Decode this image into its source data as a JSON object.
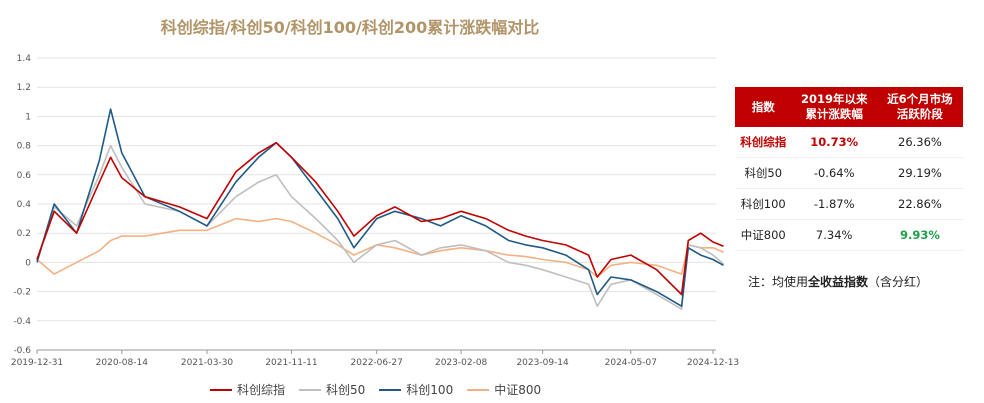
{
  "chart_data": {
    "type": "line",
    "title": "科创综指/科创50/科创100/科创200累计涨跌幅对比",
    "ylim": [
      -0.5,
      1.4
    ],
    "yticks": [
      "1.4",
      "1.2",
      "1",
      "0.8",
      "0.6",
      "0.4",
      "0.2",
      "0",
      "-0.2",
      "-0.4",
      "-0.6"
    ],
    "ytick_values": [
      1.4,
      1.2,
      1.0,
      0.8,
      0.6,
      0.4,
      0.2,
      0,
      -0.2,
      -0.4,
      -0.6
    ],
    "x_tick_labels": [
      "2019-12-31",
      "2020-08-14",
      "2021-03-30",
      "2021-11-11",
      "2022-06-27",
      "2023-02-08",
      "2023-09-14",
      "2024-05-07",
      "2024-12-13"
    ],
    "x_dates": [
      "2019-12-31",
      "2020-02-15",
      "2020-04-15",
      "2020-06-15",
      "2020-07-15",
      "2020-08-14",
      "2020-10-15",
      "2021-01-15",
      "2021-03-30",
      "2021-06-15",
      "2021-08-15",
      "2021-10-01",
      "2021-11-11",
      "2022-01-15",
      "2022-03-15",
      "2022-04-27",
      "2022-06-27",
      "2022-08-15",
      "2022-10-25",
      "2022-12-15",
      "2023-02-08",
      "2023-04-15",
      "2023-06-15",
      "2023-07-31",
      "2023-09-14",
      "2023-11-15",
      "2024-01-15",
      "2024-02-07",
      "2024-03-15",
      "2024-05-07",
      "2024-07-15",
      "2024-09-20",
      "2024-10-08",
      "2024-11-10",
      "2024-12-13",
      "2025-01-10"
    ],
    "series": [
      {
        "name": "科创综指",
        "color": "#c00000",
        "values": [
          0.02,
          0.35,
          0.2,
          0.55,
          0.72,
          0.58,
          0.45,
          0.38,
          0.3,
          0.62,
          0.75,
          0.82,
          0.72,
          0.55,
          0.35,
          0.18,
          0.32,
          0.38,
          0.28,
          0.3,
          0.35,
          0.3,
          0.22,
          0.18,
          0.15,
          0.12,
          0.05,
          -0.1,
          0.02,
          0.05,
          -0.05,
          -0.22,
          0.15,
          0.2,
          0.14,
          0.11
        ]
      },
      {
        "name": "科创50",
        "color": "#bfbfbf",
        "values": [
          0.02,
          0.38,
          0.25,
          0.6,
          0.8,
          0.65,
          0.4,
          0.35,
          0.25,
          0.45,
          0.55,
          0.6,
          0.45,
          0.3,
          0.15,
          0.0,
          0.12,
          0.15,
          0.05,
          0.1,
          0.12,
          0.08,
          0.0,
          -0.02,
          -0.05,
          -0.1,
          -0.15,
          -0.3,
          -0.15,
          -0.12,
          -0.22,
          -0.32,
          0.12,
          0.1,
          0.05,
          -0.01
        ]
      },
      {
        "name": "科创100",
        "color": "#1f5a87",
        "values": [
          0.0,
          0.4,
          0.2,
          0.7,
          1.05,
          0.75,
          0.45,
          0.35,
          0.25,
          0.55,
          0.72,
          0.82,
          0.72,
          0.5,
          0.3,
          0.1,
          0.3,
          0.35,
          0.3,
          0.25,
          0.32,
          0.25,
          0.15,
          0.12,
          0.1,
          0.05,
          -0.05,
          -0.22,
          -0.1,
          -0.12,
          -0.2,
          -0.3,
          0.1,
          0.05,
          0.02,
          -0.02
        ]
      },
      {
        "name": "中证800",
        "color": "#f4b183",
        "values": [
          0.02,
          -0.08,
          0.0,
          0.08,
          0.15,
          0.18,
          0.18,
          0.22,
          0.22,
          0.3,
          0.28,
          0.3,
          0.28,
          0.2,
          0.12,
          0.05,
          0.12,
          0.1,
          0.05,
          0.08,
          0.1,
          0.08,
          0.05,
          0.04,
          0.02,
          0.0,
          -0.05,
          -0.1,
          -0.02,
          0.0,
          -0.02,
          -0.08,
          0.12,
          0.1,
          0.1,
          0.07
        ]
      }
    ]
  },
  "table": {
    "headers": [
      [
        "指数"
      ],
      [
        "2019年以来",
        "累计涨跌幅"
      ],
      [
        "近6个月市场",
        "活跃阶段"
      ]
    ],
    "rows": [
      {
        "name": "科创综指",
        "ytd": "10.73%",
        "recent": "26.36%"
      },
      {
        "name": "科创50",
        "ytd": "-0.64%",
        "recent": "29.19%"
      },
      {
        "name": "科创100",
        "ytd": "-1.87%",
        "recent": "22.86%"
      },
      {
        "name": "中证800",
        "ytd": "7.34%",
        "recent": "9.93%"
      }
    ]
  },
  "note": {
    "prefix": "注：均使用",
    "bold": "全收益指数",
    "suffix": "（含分红）"
  }
}
